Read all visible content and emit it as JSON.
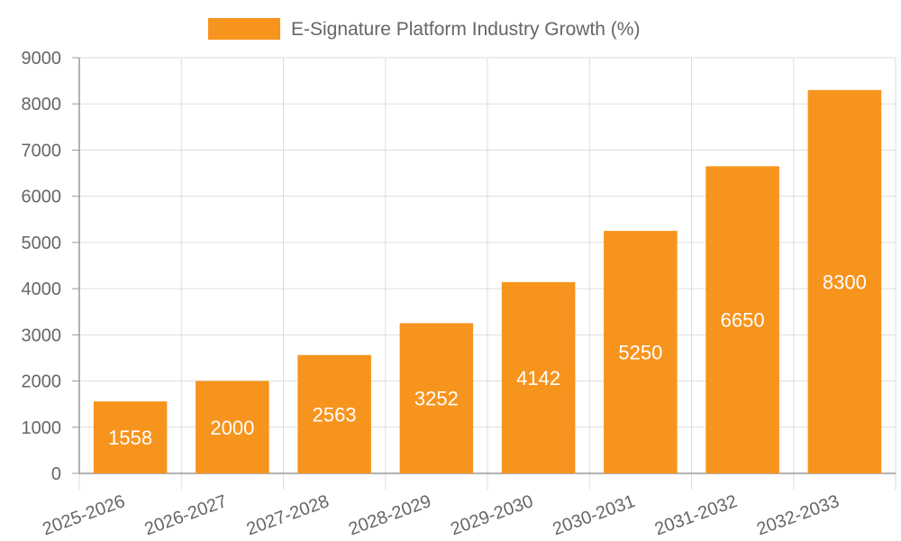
{
  "chart_data": {
    "type": "bar",
    "title": "",
    "xlabel": "",
    "ylabel": "",
    "categories": [
      "2025-2026",
      "2026-2027",
      "2027-2028",
      "2028-2029",
      "2029-2030",
      "2030-2031",
      "2031-2032",
      "2032-2033"
    ],
    "series": [
      {
        "name": "E-Signature Platform Industry Growth (%)",
        "values": [
          1558,
          2000,
          2563,
          3252,
          4142,
          5250,
          6650,
          8300
        ],
        "color": "#f7941d"
      }
    ],
    "ylim": [
      0,
      9000
    ],
    "yticks": [
      0,
      1000,
      2000,
      3000,
      4000,
      5000,
      6000,
      7000,
      8000,
      9000
    ],
    "grid": true,
    "legend_position": "top-center",
    "data_labels": true
  }
}
